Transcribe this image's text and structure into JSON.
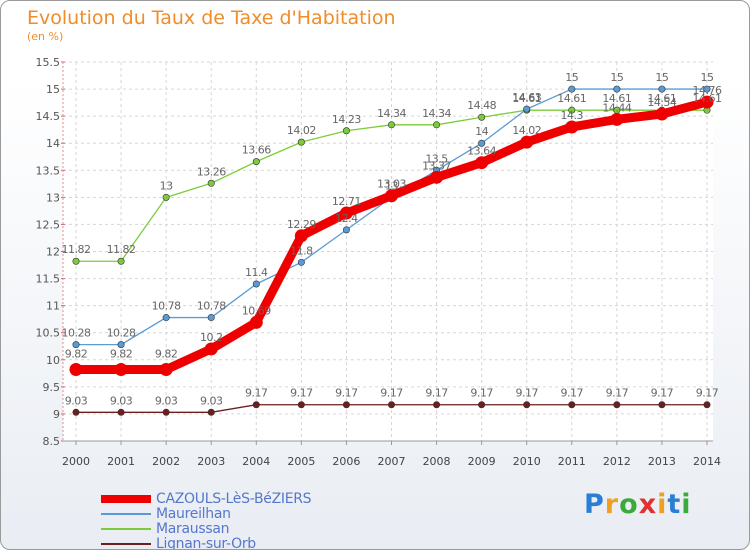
{
  "chart_data": {
    "type": "line",
    "title": "Evolution du Taux de Taxe d'Habitation",
    "unit_label": "(en %)",
    "x": [
      2000,
      2001,
      2002,
      2003,
      2004,
      2005,
      2006,
      2007,
      2008,
      2009,
      2010,
      2011,
      2012,
      2013,
      2014
    ],
    "ylim": [
      8.5,
      15.5
    ],
    "yticks": [
      8.5,
      9,
      9.5,
      10,
      10.5,
      11,
      11.5,
      12,
      12.5,
      13,
      13.5,
      14,
      14.5,
      15,
      15.5
    ],
    "grid": true,
    "series": [
      {
        "name": "CAZOULS-LèS-BéZIERS",
        "color": "#ee0000",
        "values": [
          9.82,
          9.82,
          9.82,
          10.2,
          10.69,
          12.29,
          12.71,
          13.03,
          13.37,
          13.64,
          14.02,
          14.3,
          14.44,
          14.54,
          14.76
        ],
        "labels": [
          "9.82",
          "9.82",
          "9.82",
          "10.2",
          "10.69",
          "12.29",
          "12.71",
          "13.03",
          "13.37",
          "13.64",
          "14.02",
          "14.3",
          "14.44",
          "14.54",
          "14.76"
        ]
      },
      {
        "name": "Maureilhan",
        "color": "#5b9bd5",
        "values": [
          10.28,
          10.28,
          10.78,
          10.78,
          11.4,
          11.8,
          12.4,
          13.0,
          13.5,
          14.0,
          14.63,
          15,
          15,
          15,
          15
        ],
        "labels": [
          "10.28",
          "10.28",
          "10.78",
          "10.78",
          "11.4",
          "11.8",
          "12.4",
          "13",
          "13.5",
          "14",
          "14.63",
          "15",
          "15",
          "15",
          "15"
        ]
      },
      {
        "name": "Maraussan",
        "color": "#7ccc3a",
        "values": [
          11.82,
          11.82,
          13,
          13.26,
          13.66,
          14.02,
          14.23,
          14.34,
          14.34,
          14.48,
          14.61,
          14.61,
          14.61,
          14.61,
          14.61
        ],
        "labels": [
          "11.82",
          "11.82",
          "13",
          "13.26",
          "13.66",
          "14.02",
          "14.23",
          "14.34",
          "14.34",
          "14.48",
          "14.61",
          "14.61",
          "14.61",
          "14.61",
          "14.61"
        ]
      },
      {
        "name": "Lignan-sur-Orb",
        "color": "#6b1f1f",
        "values": [
          9.03,
          9.03,
          9.03,
          9.03,
          9.17,
          9.17,
          9.17,
          9.17,
          9.17,
          9.17,
          9.17,
          9.17,
          9.17,
          9.17,
          9.17
        ],
        "labels": [
          "9.03",
          "9.03",
          "9.03",
          "9.03",
          "9.17",
          "9.17",
          "9.17",
          "9.17",
          "9.17",
          "9.17",
          "9.17",
          "9.17",
          "9.17",
          "9.17",
          "9.17"
        ]
      }
    ]
  },
  "legend": {
    "items": [
      {
        "label": "CAZOULS-LèS-BéZIERS",
        "color": "#ee0000"
      },
      {
        "label": "Maureilhan",
        "color": "#5b9bd5"
      },
      {
        "label": "Maraussan",
        "color": "#7ccc3a"
      },
      {
        "label": "Lignan-sur-Orb",
        "color": "#6b1f1f"
      }
    ]
  },
  "logo": {
    "text": "Proxiti"
  }
}
